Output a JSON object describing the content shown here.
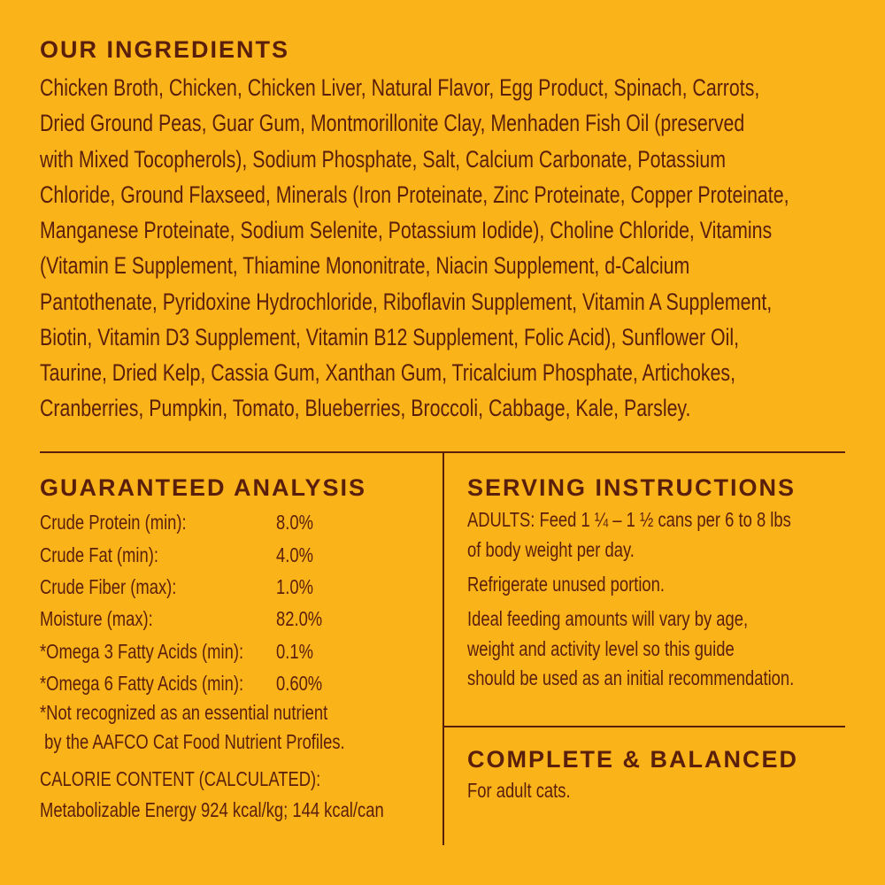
{
  "ingredients": {
    "title": "OUR INGREDIENTS",
    "lines": [
      "Chicken Broth, Chicken, Chicken Liver, Natural Flavor, Egg Product, Spinach, Carrots,",
      "Dried Ground Peas, Guar Gum, Montmorillonite Clay, Menhaden Fish Oil (preserved",
      "with Mixed Tocopherols), Sodium Phosphate, Salt, Calcium Carbonate, Potassium",
      "Chloride, Ground Flaxseed, Minerals (Iron Proteinate, Zinc Proteinate, Copper Proteinate,",
      "Manganese Proteinate, Sodium Selenite, Potassium Iodide), Choline Chloride, Vitamins",
      "(Vitamin E Supplement, Thiamine Mononitrate, Niacin Supplement, d-Calcium",
      "Pantothenate, Pyridoxine Hydrochloride, Riboflavin Supplement, Vitamin A Supplement,",
      "Biotin, Vitamin D3 Supplement, Vitamin B12 Supplement, Folic Acid), Sunflower Oil,",
      "Taurine, Dried Kelp, Cassia Gum, Xanthan Gum, Tricalcium Phosphate, Artichokes,",
      "Cranberries, Pumpkin, Tomato, Blueberries, Broccoli, Cabbage, Kale, Parsley."
    ]
  },
  "analysis": {
    "title": "GUARANTEED ANALYSIS",
    "rows": [
      {
        "label": "Crude Protein (min):",
        "value": "8.0%"
      },
      {
        "label": "Crude Fat (min):",
        "value": "4.0%"
      },
      {
        "label": "Crude Fiber (max):",
        "value": "1.0%"
      },
      {
        "label": "Moisture (max):",
        "value": "82.0%"
      },
      {
        "label": "*Omega 3 Fatty Acids (min):",
        "value": "0.1%"
      },
      {
        "label": "*Omega 6 Fatty Acids (min):",
        "value": "0.60%"
      }
    ],
    "footnote": [
      "*Not recognized as an essential nutrient",
      " by the AAFCO Cat Food Nutrient Profiles."
    ],
    "calorie": [
      "CALORIE CONTENT (CALCULATED):",
      "Metabolizable Energy 924 kcal/kg; 144 kcal/can"
    ]
  },
  "serving": {
    "title": "SERVING INSTRUCTIONS",
    "lines": [
      "ADULTS: Feed 1 ¼ – 1 ½ cans per 6 to 8 lbs",
      "of body weight per day.",
      "Refrigerate unused portion.",
      "Ideal feeding amounts will vary by age,",
      "weight and activity level so this guide",
      "should be used as an initial recommendation."
    ]
  },
  "complete": {
    "title": "COMPLETE & BALANCED",
    "text": "For adult cats."
  },
  "colors": {
    "background": "#fbb31a",
    "text": "#5a1f0b"
  }
}
